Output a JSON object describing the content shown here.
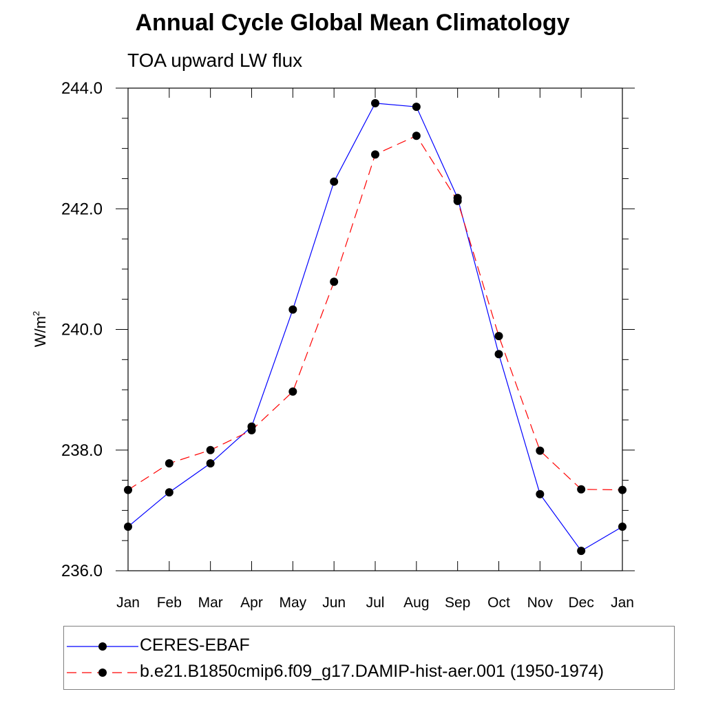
{
  "title": "Annual Cycle Global Mean Climatology",
  "subtitle": "TOA upward LW flux",
  "chart_data": {
    "type": "line",
    "xlabel": "",
    "ylabel": "W/m²",
    "ylabel_base": "W/m",
    "ylabel_sup": "2",
    "categories": [
      "Jan",
      "Feb",
      "Mar",
      "Apr",
      "May",
      "Jun",
      "Jul",
      "Aug",
      "Sep",
      "Oct",
      "Nov",
      "Dec",
      "Jan"
    ],
    "ylim": [
      236.0,
      244.0
    ],
    "yticks": [
      "236.0",
      "238.0",
      "240.0",
      "242.0",
      "244.0"
    ],
    "grid": false,
    "legend_position": "bottom",
    "series": [
      {
        "name": "CERES-EBAF",
        "color": "#0000ff",
        "dash": "solid",
        "marker": "filled-circle",
        "values": [
          236.73,
          237.3,
          237.78,
          238.39,
          240.33,
          242.45,
          243.75,
          243.69,
          242.18,
          239.59,
          237.27,
          236.33,
          236.73
        ]
      },
      {
        "name": "b.e21.B1850cmip6.f09_g17.DAMIP-hist-aer.001 (1950-1974)",
        "color": "#ff0000",
        "dash": "dashed",
        "marker": "filled-circle",
        "values": [
          237.34,
          237.78,
          238.0,
          238.33,
          238.97,
          240.79,
          242.9,
          243.21,
          242.13,
          239.89,
          237.99,
          237.35,
          237.34
        ]
      }
    ]
  }
}
